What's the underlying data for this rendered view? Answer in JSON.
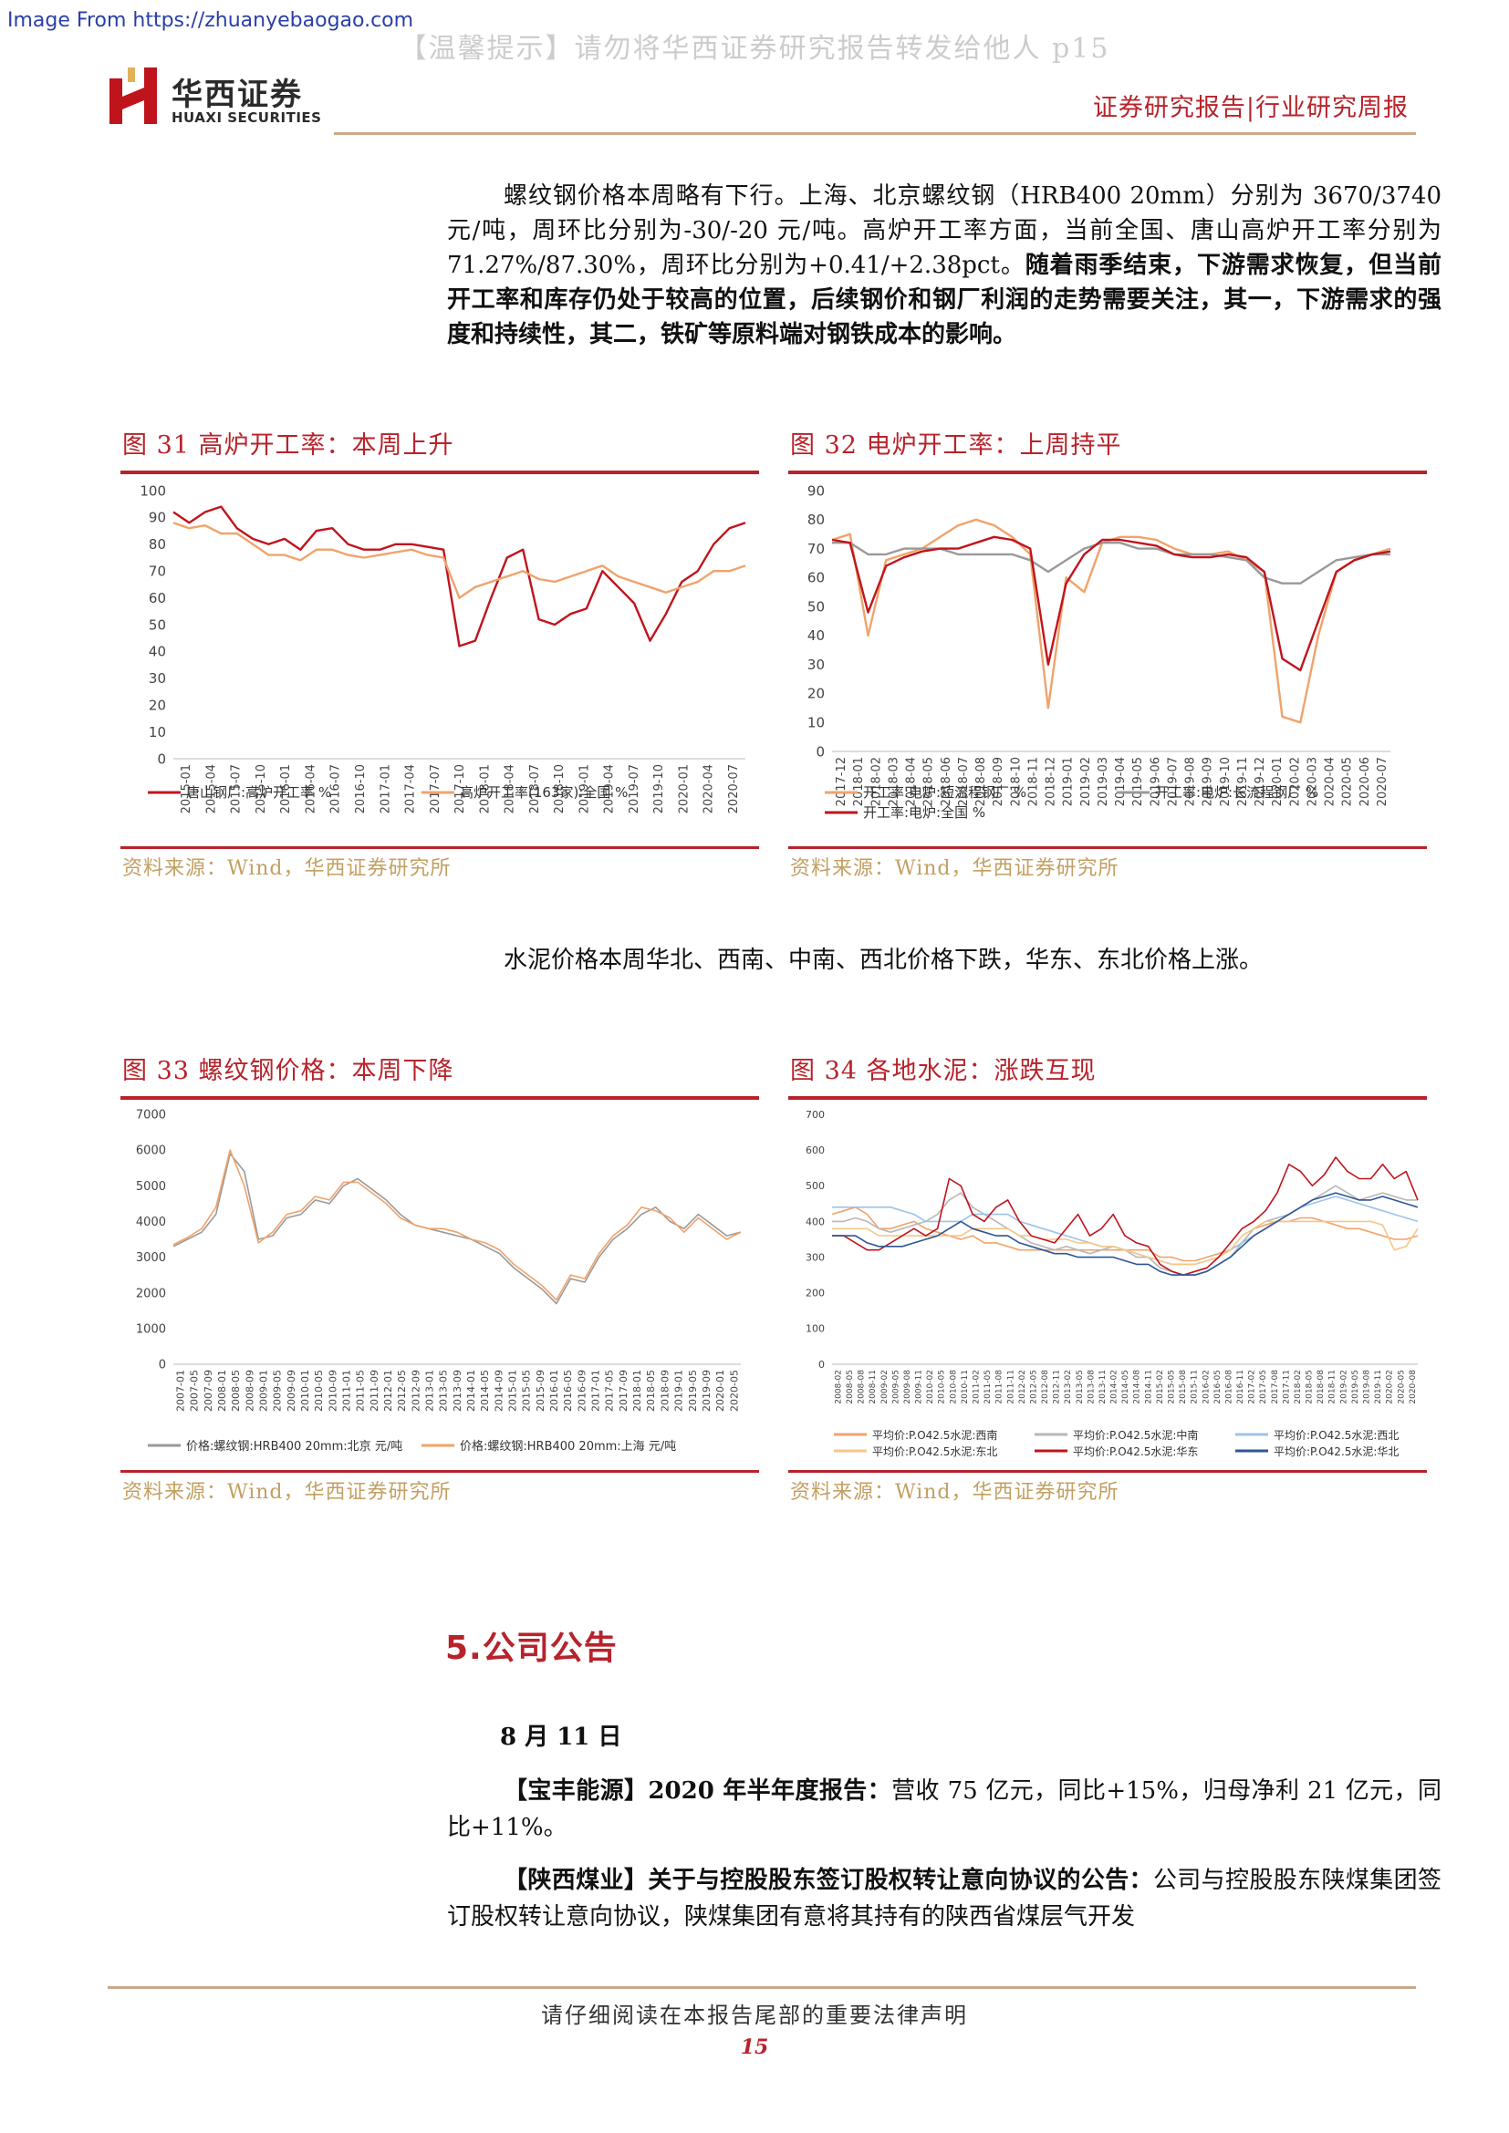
{
  "header": {
    "watermark_source": "Image From https://zhuanyebaogao.com",
    "warning": "【温馨提示】请勿将华西证券研究报告转发给他人 p15",
    "logo_cn": "华西证券",
    "logo_en": "HUAXI SECURITIES",
    "report_type": "证券研究报告|行业研究周报"
  },
  "body": {
    "para1": {
      "normal": "螺纹钢价格本周略有下行。上海、北京螺纹钢（HRB400 20mm）分别为 3670/3740 元/吨，周环比分别为-30/-20 元/吨。高炉开工率方面，当前全国、唐山高炉开工率分别为 71.27%/87.30%，周环比分别为+0.41/+2.38pct。",
      "bold": "随着雨季结束，下游需求恢复，但当前开工率和库存仍处于较高的位置，后续钢价和钢厂利润的走势需要关注，其一，下游需求的强度和持续性，其二，铁矿等原料端对钢铁成本的影响。"
    },
    "para2": "水泥价格本周华北、西南、中南、西北价格下跌，华东、东北价格上涨。"
  },
  "figures": [
    {
      "title": "图 31  高炉开工率：本周上升",
      "source": "资料来源：Wind，华西证券研究所"
    },
    {
      "title": "图 32  电炉开工率：上周持平",
      "source": "资料来源：Wind，华西证券研究所"
    },
    {
      "title": "图 33  螺纹钢价格：本周下降",
      "source": "资料来源：Wind，华西证券研究所"
    },
    {
      "title": "图 34  各地水泥：涨跌互现",
      "source": "资料来源：Wind，华西证券研究所"
    }
  ],
  "chart_data": [
    {
      "type": "line",
      "yticks": [
        "0",
        "10",
        "20",
        "30",
        "40",
        "50",
        "60",
        "70",
        "80",
        "90",
        "100"
      ],
      "ylim": [
        0,
        100
      ],
      "x_labels": [
        "2015-01",
        "2015-04",
        "2015-07",
        "2015-10",
        "2016-01",
        "2016-04",
        "2016-07",
        "2016-10",
        "2017-01",
        "2017-04",
        "2017-07",
        "2017-10",
        "2018-01",
        "2018-04",
        "2018-07",
        "2018-10",
        "2019-01",
        "2019-04",
        "2019-07",
        "2019-10",
        "2020-01",
        "2020-04",
        "2020-07"
      ],
      "series": [
        {
          "name": "唐山钢厂:高炉开工率 %",
          "color": "#c0141c",
          "values": [
            92,
            88,
            92,
            94,
            86,
            82,
            80,
            82,
            78,
            85,
            86,
            80,
            78,
            78,
            80,
            80,
            79,
            78,
            42,
            44,
            60,
            75,
            78,
            52,
            50,
            54,
            56,
            70,
            64,
            58,
            44,
            54,
            66,
            70,
            80,
            86,
            88
          ]
        },
        {
          "name": "高炉开工率(163家):全国 %",
          "color": "#f0a36b",
          "values": [
            88,
            86,
            87,
            84,
            84,
            80,
            76,
            76,
            74,
            78,
            78,
            76,
            75,
            76,
            77,
            78,
            76,
            75,
            60,
            64,
            66,
            68,
            70,
            67,
            66,
            68,
            70,
            72,
            68,
            66,
            64,
            62,
            64,
            66,
            70,
            70,
            72
          ]
        }
      ]
    },
    {
      "type": "line",
      "yticks": [
        "0",
        "10",
        "20",
        "30",
        "40",
        "50",
        "60",
        "70",
        "80",
        "90"
      ],
      "ylim": [
        0,
        90
      ],
      "x_labels": [
        "2017-12",
        "2018-01",
        "2018-02",
        "2018-03",
        "2018-04",
        "2018-05",
        "2018-06",
        "2018-07",
        "2018-08",
        "2018-09",
        "2018-10",
        "2018-11",
        "2018-12",
        "2019-01",
        "2019-02",
        "2019-03",
        "2019-04",
        "2019-05",
        "2019-06",
        "2019-07",
        "2019-08",
        "2019-09",
        "2019-10",
        "2019-11",
        "2019-12",
        "2020-01",
        "2020-02",
        "2020-03",
        "2020-04",
        "2020-05",
        "2020-06",
        "2020-07"
      ],
      "series": [
        {
          "name": "开工率:电炉:短流程钢厂 %",
          "color": "#f0a36b",
          "values": [
            73,
            75,
            40,
            66,
            68,
            70,
            74,
            78,
            80,
            78,
            74,
            68,
            15,
            60,
            55,
            72,
            74,
            74,
            73,
            70,
            68,
            68,
            69,
            66,
            62,
            12,
            10,
            40,
            62,
            66,
            68,
            70
          ]
        },
        {
          "name": "开工率:电炉:长流程钢厂 %",
          "color": "#999999",
          "values": [
            72,
            72,
            68,
            68,
            70,
            70,
            70,
            68,
            68,
            68,
            68,
            66,
            62,
            66,
            70,
            72,
            72,
            70,
            70,
            68,
            68,
            68,
            67,
            66,
            60,
            58,
            58,
            62,
            66,
            67,
            68,
            68
          ]
        },
        {
          "name": "开工率:电炉:全国 %",
          "color": "#c0141c",
          "values": [
            73,
            72,
            48,
            64,
            67,
            69,
            70,
            70,
            72,
            74,
            73,
            70,
            30,
            58,
            68,
            73,
            73,
            72,
            71,
            68,
            67,
            67,
            68,
            67,
            62,
            32,
            28,
            45,
            62,
            66,
            68,
            69
          ]
        }
      ]
    },
    {
      "type": "line",
      "yticks": [
        "0",
        "1000",
        "2000",
        "3000",
        "4000",
        "5000",
        "6000",
        "7000"
      ],
      "ylim": [
        0,
        7000
      ],
      "x_labels": [
        "2007-01",
        "2007-05",
        "2007-09",
        "2008-01",
        "2008-05",
        "2008-09",
        "2009-01",
        "2009-05",
        "2009-09",
        "2010-01",
        "2010-05",
        "2010-09",
        "2011-01",
        "2011-05",
        "2011-09",
        "2012-01",
        "2012-05",
        "2012-09",
        "2013-01",
        "2013-05",
        "2013-09",
        "2014-01",
        "2014-05",
        "2014-09",
        "2015-01",
        "2015-05",
        "2015-09",
        "2016-01",
        "2016-05",
        "2016-09",
        "2017-01",
        "2017-05",
        "2017-09",
        "2018-01",
        "2018-05",
        "2018-09",
        "2019-01",
        "2019-05",
        "2019-09",
        "2020-01",
        "2020-05"
      ],
      "series": [
        {
          "name": "价格:螺纹钢:HRB400 20mm:北京 元/吨",
          "color": "#9a9a9a",
          "values": [
            3300,
            3500,
            3700,
            4200,
            5900,
            5400,
            3500,
            3600,
            4100,
            4200,
            4600,
            4500,
            5000,
            5200,
            4900,
            4600,
            4200,
            3900,
            3800,
            3700,
            3600,
            3500,
            3300,
            3100,
            2700,
            2400,
            2100,
            1700,
            2400,
            2300,
            3000,
            3500,
            3800,
            4200,
            4400,
            4000,
            3800,
            4200,
            3900,
            3600,
            3700
          ]
        },
        {
          "name": "价格:螺纹钢:HRB400 20mm:上海 元/吨",
          "color": "#f0a36b",
          "values": [
            3350,
            3550,
            3800,
            4400,
            6000,
            5000,
            3400,
            3700,
            4200,
            4300,
            4700,
            4600,
            5100,
            5100,
            4800,
            4500,
            4100,
            3900,
            3800,
            3800,
            3700,
            3500,
            3400,
            3200,
            2800,
            2500,
            2200,
            1800,
            2500,
            2400,
            3100,
            3600,
            3900,
            4400,
            4300,
            4100,
            3700,
            4100,
            3800,
            3500,
            3700
          ]
        }
      ]
    },
    {
      "type": "line",
      "yticks": [
        "0",
        "100",
        "200",
        "300",
        "400",
        "500",
        "600",
        "700"
      ],
      "ylim": [
        0,
        700
      ],
      "x_labels": [
        "2008-02",
        "2008-05",
        "2008-08",
        "2008-11",
        "2009-02",
        "2009-05",
        "2009-08",
        "2009-11",
        "2010-02",
        "2010-05",
        "2010-08",
        "2010-11",
        "2011-02",
        "2011-05",
        "2011-08",
        "2011-11",
        "2012-02",
        "2012-05",
        "2012-08",
        "2012-11",
        "2013-02",
        "2013-05",
        "2013-08",
        "2013-11",
        "2014-02",
        "2014-05",
        "2014-08",
        "2014-11",
        "2015-02",
        "2015-05",
        "2015-08",
        "2015-11",
        "2016-02",
        "2016-05",
        "2016-08",
        "2016-11",
        "2017-02",
        "2017-05",
        "2017-08",
        "2017-11",
        "2018-02",
        "2018-05",
        "2018-08",
        "2018-11",
        "2019-02",
        "2019-05",
        "2019-08",
        "2019-11",
        "2020-02",
        "2020-05",
        "2020-08"
      ],
      "series": [
        {
          "name": "平均价:P.O42.5水泥:西南",
          "color": "#f0a36b",
          "values": [
            420,
            430,
            440,
            420,
            380,
            380,
            390,
            400,
            380,
            370,
            360,
            350,
            360,
            340,
            340,
            330,
            320,
            320,
            320,
            320,
            320,
            320,
            320,
            320,
            320,
            320,
            320,
            320,
            300,
            300,
            290,
            290,
            300,
            310,
            320,
            340,
            380,
            390,
            400,
            400,
            410,
            410,
            400,
            390,
            380,
            380,
            370,
            360,
            350,
            350,
            360
          ]
        },
        {
          "name": "平均价:P.O42.5水泥:中南",
          "color": "#b8b8b8",
          "values": [
            400,
            400,
            410,
            400,
            380,
            370,
            380,
            390,
            400,
            420,
            460,
            480,
            440,
            420,
            400,
            380,
            360,
            340,
            330,
            320,
            330,
            320,
            310,
            320,
            330,
            320,
            300,
            300,
            270,
            260,
            250,
            250,
            260,
            280,
            300,
            340,
            380,
            400,
            410,
            420,
            440,
            460,
            480,
            500,
            480,
            460,
            470,
            480,
            470,
            460,
            460
          ]
        },
        {
          "name": "平均价:P.O42.5水泥:西北",
          "color": "#9dc3e6",
          "values": [
            440,
            440,
            440,
            440,
            440,
            440,
            430,
            420,
            400,
            400,
            400,
            400,
            420,
            420,
            420,
            420,
            400,
            390,
            380,
            370,
            360,
            350,
            340,
            330,
            330,
            320,
            310,
            300,
            290,
            280,
            280,
            280,
            290,
            300,
            320,
            340,
            360,
            380,
            400,
            420,
            440,
            450,
            460,
            470,
            460,
            450,
            440,
            430,
            420,
            410,
            400
          ]
        },
        {
          "name": "平均价:P.O42.5水泥:东北",
          "color": "#f5c887",
          "values": [
            380,
            380,
            380,
            380,
            360,
            360,
            360,
            360,
            360,
            360,
            360,
            360,
            380,
            380,
            380,
            380,
            360,
            360,
            350,
            350,
            350,
            340,
            340,
            330,
            330,
            320,
            310,
            300,
            290,
            280,
            280,
            280,
            290,
            300,
            320,
            360,
            380,
            400,
            400,
            400,
            400,
            400,
            400,
            400,
            400,
            400,
            400,
            390,
            320,
            330,
            380
          ]
        },
        {
          "name": "平均价:P.O42.5水泥:华东",
          "color": "#c0141c",
          "values": [
            360,
            360,
            340,
            320,
            320,
            340,
            360,
            380,
            360,
            380,
            520,
            500,
            420,
            400,
            440,
            460,
            400,
            360,
            350,
            340,
            380,
            420,
            360,
            380,
            420,
            360,
            340,
            330,
            280,
            260,
            250,
            260,
            270,
            300,
            340,
            380,
            400,
            430,
            480,
            560,
            540,
            500,
            530,
            580,
            540,
            520,
            520,
            560,
            520,
            540,
            460
          ]
        },
        {
          "name": "平均价:P.O42.5水泥:华北",
          "color": "#2f5597",
          "values": [
            360,
            360,
            360,
            340,
            330,
            330,
            330,
            340,
            350,
            360,
            380,
            400,
            380,
            370,
            360,
            360,
            340,
            330,
            320,
            310,
            310,
            300,
            300,
            300,
            300,
            290,
            280,
            280,
            260,
            250,
            250,
            250,
            260,
            280,
            300,
            330,
            360,
            380,
            400,
            420,
            440,
            460,
            470,
            480,
            470,
            460,
            460,
            470,
            460,
            450,
            440
          ]
        }
      ]
    }
  ],
  "section": {
    "title": "5.公司公告",
    "date": "8 月 11 日",
    "ann1": {
      "bold": "【宝丰能源】2020 年半年度报告：",
      "normal": "营收 75 亿元，同比+15%，归母净利 21 亿元，同比+11%。"
    },
    "ann2": {
      "bold": "【陕西煤业】关于与控股股东签订股权转让意向协议的公告：",
      "normal": "公司与控股股东陕煤集团签订股权转让意向协议，陕煤集团有意将其持有的陕西省煤层气开发"
    }
  },
  "footer": {
    "notice": "请仔细阅读在本报告尾部的重要法律声明",
    "page": "15"
  },
  "colors": {
    "accent": "#b7232b",
    "source_text": "#c2a062",
    "rule": "#c9a98a"
  }
}
